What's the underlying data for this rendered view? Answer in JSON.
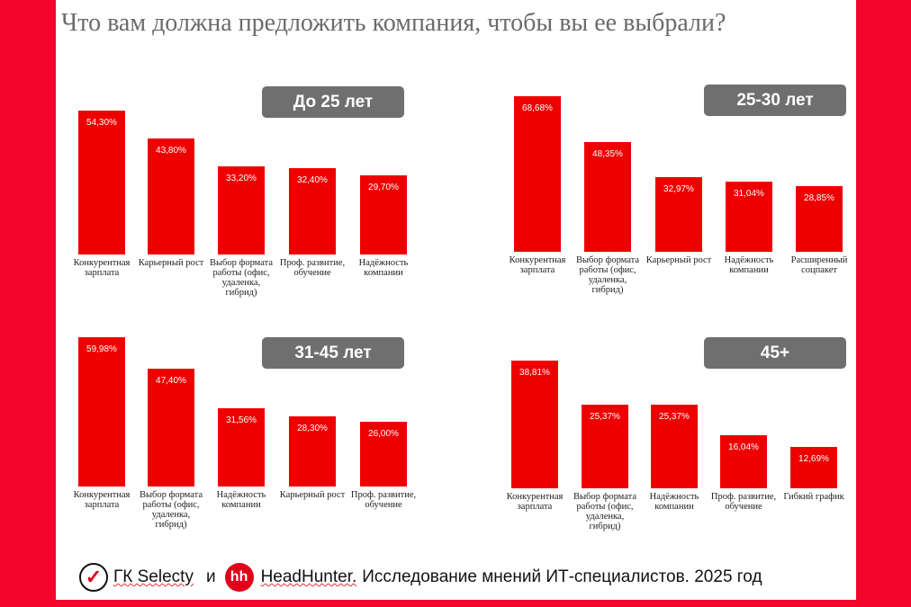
{
  "title": "Что вам должна предложить компания, чтобы вы ее выбрали?",
  "footer": {
    "org1": "ГК Selecty",
    "and": "и",
    "logo2_text": "hh",
    "org2": "HeadHunter.",
    "rest": "Исследование мнений ИТ-специалистов. 2025 год"
  },
  "colors": {
    "bar": "#ee0000",
    "badge": "#6f6f6f",
    "frame": "#f2062c"
  },
  "chart_data": [
    {
      "type": "bar",
      "title": "До 25 лет",
      "categories": [
        "Конкурентная зарплата",
        "Карьерный рост",
        "Выбор формата работы (офис, удаленка, гибрид)",
        "Проф. развитие, обучение",
        "Надёжность компании"
      ],
      "values": [
        54.3,
        43.8,
        33.2,
        32.4,
        29.7
      ],
      "labels": [
        "54,30%",
        "43,80%",
        "33,20%",
        "32,40%",
        "29,70%"
      ]
    },
    {
      "type": "bar",
      "title": "25-30 лет",
      "categories": [
        "Конкурентная зарплата",
        "Выбор формата работы (офис, удаленка, гибрид)",
        "Карьерный рост",
        "Надёжность компании",
        "Расширенный соцпакет"
      ],
      "values": [
        68.68,
        48.35,
        32.97,
        31.04,
        28.85
      ],
      "labels": [
        "68,68%",
        "48,35%",
        "32,97%",
        "31,04%",
        "28,85%"
      ]
    },
    {
      "type": "bar",
      "title": "31-45 лет",
      "categories": [
        "Конкурентная зарплата",
        "Выбор формата работы (офис, удаленка, гибрид)",
        "Надёжность компании",
        "Карьерный рост",
        "Проф. развитие, обучение"
      ],
      "values": [
        59.98,
        47.4,
        31.56,
        28.3,
        26.0
      ],
      "labels": [
        "59,98%",
        "47,40%",
        "31,56%",
        "28,30%",
        "26,00%"
      ]
    },
    {
      "type": "bar",
      "title": "45+",
      "categories": [
        "Конкурентная зарплата",
        "Выбор формата работы (офис, удаленка, гибрид)",
        "Надёжность компании",
        "Проф. развитие, обучение",
        "Гибкий график"
      ],
      "values": [
        38.81,
        25.37,
        25.37,
        16.04,
        12.69
      ],
      "labels": [
        "38,81%",
        "25,37%",
        "25,37%",
        "16,04%",
        "12,69%"
      ]
    }
  ]
}
